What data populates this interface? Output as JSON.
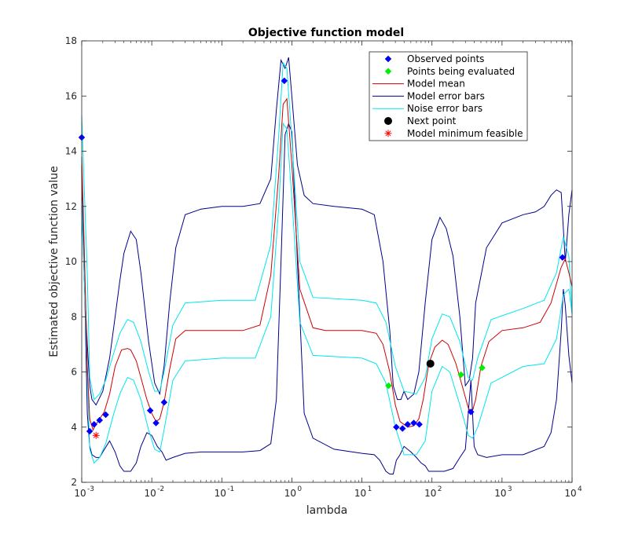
{
  "chart_data": {
    "type": "line",
    "title": "Objective function model",
    "xlabel": "lambda",
    "ylabel": "Estimated objective function value",
    "xscale": "log",
    "xlim": [
      0.001,
      10000
    ],
    "ylim": [
      2,
      18
    ],
    "grid": false,
    "legend_position": "top-right",
    "x_ticks": [
      {
        "base": "10",
        "exp": "-3",
        "value": 0.001
      },
      {
        "base": "10",
        "exp": "-2",
        "value": 0.01
      },
      {
        "base": "10",
        "exp": "-1",
        "value": 0.1
      },
      {
        "base": "10",
        "exp": "0",
        "value": 1
      },
      {
        "base": "10",
        "exp": "1",
        "value": 10
      },
      {
        "base": "10",
        "exp": "2",
        "value": 100
      },
      {
        "base": "10",
        "exp": "3",
        "value": 1000
      },
      {
        "base": "10",
        "exp": "4",
        "value": 10000
      }
    ],
    "y_ticks": [
      "2",
      "4",
      "6",
      "8",
      "10",
      "12",
      "14",
      "16",
      "18"
    ],
    "colors": {
      "observed": "#0000ff",
      "evaluating": "#00ee00",
      "mean": "#cc0000",
      "model_error": "#00008b",
      "noise_error": "#00e5ee",
      "next": "#000000",
      "minimum": "#ff0000"
    },
    "legend": [
      {
        "key": "observed",
        "label": "Observed points",
        "marker": "diamond"
      },
      {
        "key": "evaluating",
        "label": "Points being evaluated",
        "marker": "diamond"
      },
      {
        "key": "mean",
        "label": "Model mean",
        "marker": "line"
      },
      {
        "key": "model_error",
        "label": "Model error bars",
        "marker": "line"
      },
      {
        "key": "noise_error",
        "label": "Noise error bars",
        "marker": "line"
      },
      {
        "key": "next",
        "label": "Next point",
        "marker": "circle"
      },
      {
        "key": "minimum",
        "label": "Model minimum feasible",
        "marker": "asterisk"
      }
    ],
    "series": [
      {
        "key": "mean",
        "x": [
          0.001,
          0.0011,
          0.0012,
          0.0013,
          0.00145,
          0.0016,
          0.0018,
          0.0021,
          0.0025,
          0.003,
          0.0037,
          0.0045,
          0.005,
          0.006,
          0.007,
          0.0085,
          0.01,
          0.0115,
          0.013,
          0.015,
          0.018,
          0.022,
          0.03,
          0.05,
          0.1,
          0.2,
          0.35,
          0.5,
          0.65,
          0.75,
          0.85,
          1.0,
          1.3,
          2,
          3,
          5,
          10,
          16,
          20,
          25,
          30,
          35,
          45,
          55,
          65,
          75,
          90,
          110,
          140,
          170,
          220,
          270,
          330,
          370,
          420,
          500,
          650,
          1000,
          2000,
          3500,
          5000,
          7000,
          8000,
          9000,
          10000
        ],
        "y": [
          13.8,
          10,
          6.2,
          4.3,
          3.9,
          4.1,
          4.3,
          4.55,
          5.2,
          6.2,
          6.8,
          6.85,
          6.8,
          6.4,
          5.8,
          5.0,
          4.5,
          4.2,
          4.3,
          4.9,
          6.1,
          7.2,
          7.5,
          7.5,
          7.5,
          7.5,
          7.7,
          9.5,
          13.2,
          15.7,
          15.9,
          13.5,
          9.0,
          7.6,
          7.5,
          7.5,
          7.5,
          7.4,
          7.0,
          6.0,
          4.8,
          4.2,
          4.0,
          4.05,
          4.3,
          5.0,
          6.3,
          6.9,
          7.15,
          7.0,
          6.3,
          5.5,
          4.7,
          4.5,
          5.0,
          6.2,
          7.1,
          7.5,
          7.6,
          7.8,
          8.5,
          9.8,
          10.1,
          9.6,
          9.1
        ]
      },
      {
        "key": "noise_upper",
        "x": [
          0.001,
          0.0012,
          0.0013,
          0.0015,
          0.0018,
          0.0022,
          0.0028,
          0.0035,
          0.0045,
          0.0055,
          0.007,
          0.009,
          0.011,
          0.013,
          0.015,
          0.02,
          0.03,
          0.1,
          0.3,
          0.5,
          0.65,
          0.75,
          0.85,
          1.0,
          1.3,
          2,
          10,
          16,
          22,
          30,
          40,
          60,
          80,
          100,
          140,
          180,
          250,
          330,
          380,
          450,
          700,
          2000,
          4000,
          6000,
          7500,
          9000,
          10000
        ],
        "y": [
          15.3,
          9.5,
          5.8,
          5.0,
          5.2,
          5.7,
          6.6,
          7.4,
          7.9,
          7.8,
          7.1,
          6.0,
          5.3,
          5.3,
          6.0,
          7.7,
          8.5,
          8.6,
          8.6,
          10.6,
          14.6,
          17.2,
          17.0,
          14.4,
          10.0,
          8.7,
          8.6,
          8.5,
          7.8,
          6.2,
          5.3,
          5.2,
          5.8,
          7.2,
          8.1,
          8.0,
          7.1,
          5.8,
          5.7,
          6.5,
          7.9,
          8.3,
          8.6,
          9.6,
          10.9,
          10.2,
          8.1
        ]
      },
      {
        "key": "noise_lower",
        "x": [
          0.001,
          0.0012,
          0.0013,
          0.0015,
          0.0018,
          0.0022,
          0.0028,
          0.0035,
          0.0045,
          0.0055,
          0.007,
          0.009,
          0.011,
          0.013,
          0.015,
          0.02,
          0.03,
          0.1,
          0.3,
          0.5,
          0.65,
          0.75,
          0.85,
          1.0,
          1.3,
          2,
          10,
          16,
          22,
          30,
          40,
          60,
          80,
          100,
          140,
          180,
          250,
          330,
          380,
          450,
          700,
          2000,
          4000,
          6000,
          7500,
          9000,
          10000
        ],
        "y": [
          12.3,
          6.0,
          3.2,
          2.7,
          2.9,
          3.4,
          4.4,
          5.2,
          5.8,
          5.7,
          5.0,
          3.9,
          3.2,
          3.1,
          3.9,
          5.7,
          6.4,
          6.5,
          6.5,
          8.0,
          12.0,
          15.0,
          14.8,
          12.3,
          7.8,
          6.6,
          6.5,
          6.3,
          5.6,
          4.0,
          3.0,
          3.0,
          3.5,
          5.3,
          6.2,
          6.0,
          4.8,
          3.7,
          3.6,
          4.0,
          5.6,
          6.2,
          6.3,
          7.2,
          8.8,
          9.0,
          8.1
        ]
      },
      {
        "key": "model_upper",
        "x": [
          0.001,
          0.0011,
          0.0012,
          0.0013,
          0.0014,
          0.0016,
          0.002,
          0.0025,
          0.003,
          0.0035,
          0.004,
          0.005,
          0.006,
          0.007,
          0.009,
          0.011,
          0.013,
          0.015,
          0.018,
          0.022,
          0.03,
          0.05,
          0.1,
          0.2,
          0.35,
          0.5,
          0.6,
          0.7,
          0.8,
          0.9,
          1.0,
          1.2,
          1.5,
          2,
          4,
          10,
          15,
          20,
          25,
          28,
          32,
          36,
          40,
          45,
          55,
          65,
          80,
          100,
          130,
          160,
          200,
          250,
          300,
          340,
          380,
          420,
          600,
          1000,
          2000,
          3000,
          4000,
          5000,
          6000,
          7000,
          8000,
          9000,
          10000
        ],
        "y": [
          12.0,
          9.0,
          7.0,
          5.5,
          5.0,
          4.8,
          5.3,
          6.5,
          8.0,
          9.3,
          10.3,
          11.1,
          10.8,
          9.6,
          7.1,
          5.6,
          5.2,
          6.2,
          8.5,
          10.5,
          11.7,
          11.9,
          12.0,
          12.0,
          12.1,
          13.0,
          15.5,
          17.3,
          17.0,
          17.4,
          16.0,
          13.5,
          12.4,
          12.1,
          12.0,
          11.9,
          11.7,
          10.0,
          7.5,
          5.5,
          5.0,
          5.0,
          5.3,
          5.0,
          5.2,
          6.0,
          8.5,
          10.8,
          11.6,
          11.2,
          10.2,
          8.0,
          5.5,
          5.7,
          6.5,
          8.5,
          10.5,
          11.4,
          11.7,
          11.8,
          12.0,
          12.4,
          12.6,
          12.5,
          10.0,
          11.7,
          12.6
        ]
      },
      {
        "key": "model_lower",
        "x": [
          0.001,
          0.0011,
          0.0012,
          0.0013,
          0.0014,
          0.0016,
          0.0018,
          0.002,
          0.0025,
          0.003,
          0.0035,
          0.004,
          0.005,
          0.006,
          0.007,
          0.0085,
          0.01,
          0.012,
          0.014,
          0.016,
          0.02,
          0.03,
          0.05,
          0.1,
          0.2,
          0.35,
          0.5,
          0.6,
          0.7,
          0.8,
          0.9,
          1.0,
          1.2,
          1.5,
          2,
          4,
          10,
          15,
          18,
          22,
          25,
          28,
          31,
          35,
          40,
          50,
          60,
          70,
          80,
          90,
          110,
          130,
          150,
          200,
          250,
          300,
          330,
          360,
          400,
          450,
          600,
          1000,
          2000,
          4000,
          5000,
          6000,
          7000,
          7500,
          8000,
          9000,
          10000
        ],
        "y": [
          13.5,
          9.0,
          4.5,
          3.3,
          3.0,
          2.9,
          2.9,
          3.1,
          3.5,
          3.1,
          2.6,
          2.4,
          2.4,
          2.7,
          3.3,
          3.8,
          3.7,
          3.3,
          3.1,
          2.8,
          2.9,
          3.05,
          3.1,
          3.1,
          3.1,
          3.15,
          3.4,
          5.0,
          10.0,
          14.6,
          15.0,
          14.7,
          10.0,
          4.5,
          3.6,
          3.2,
          3.05,
          3.0,
          2.8,
          2.4,
          2.3,
          2.3,
          2.8,
          3.0,
          3.3,
          3.1,
          2.9,
          2.7,
          2.6,
          2.4,
          2.4,
          2.4,
          2.4,
          2.5,
          2.9,
          3.2,
          4.5,
          5.7,
          3.3,
          3.0,
          2.9,
          3.0,
          3.0,
          3.3,
          3.8,
          5.0,
          7.5,
          9.0,
          8.4,
          6.6,
          5.6
        ]
      }
    ],
    "observed_points": {
      "x": [
        0.001,
        0.0013,
        0.0015,
        0.0018,
        0.0022,
        0.0095,
        0.0115,
        0.015,
        0.78,
        31,
        38,
        45,
        55,
        66,
        360,
        7300
      ],
      "y": [
        14.5,
        3.85,
        4.1,
        4.25,
        4.45,
        4.6,
        4.15,
        4.9,
        16.55,
        4.0,
        3.95,
        4.1,
        4.15,
        4.1,
        4.55,
        10.15
      ]
    },
    "evaluating_points": {
      "x": [
        24,
        260,
        520
      ],
      "y": [
        5.5,
        5.9,
        6.15
      ]
    },
    "next_point": {
      "x": 95,
      "y": 6.3
    },
    "minimum_point": {
      "x": 0.0016,
      "y": 3.7
    }
  }
}
